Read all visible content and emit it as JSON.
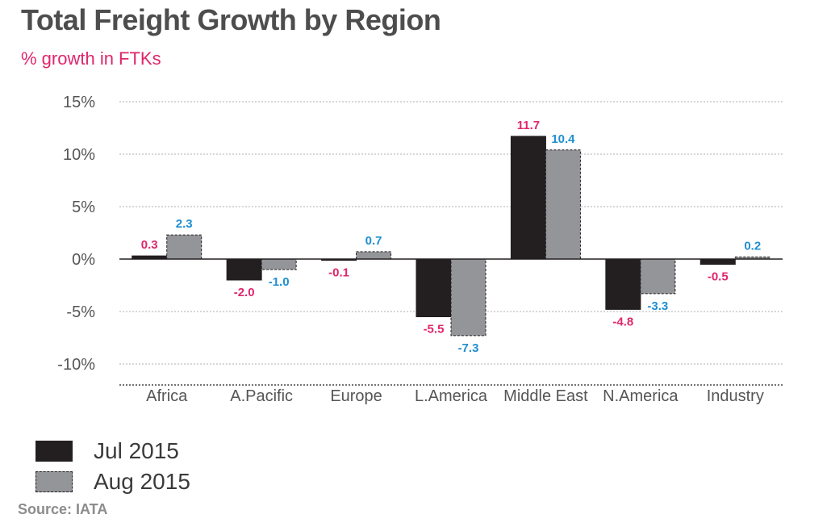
{
  "title": "Total Freight Growth by Region",
  "subtitle": "% growth in FTKs",
  "source": "Source: IATA",
  "colors": {
    "title": "#4d4d4d",
    "subtitle": "#e0266b",
    "series_jul": "#231f20",
    "series_aug": "#939598",
    "label_jul": "#e0266b",
    "label_aug": "#1f8fd0",
    "axis_text": "#555555",
    "grid": "#bfbfbf"
  },
  "chart_data": {
    "type": "bar",
    "categories": [
      "Africa",
      "A.Pacific",
      "Europe",
      "L.America",
      "Middle East",
      "N.America",
      "Industry"
    ],
    "series": [
      {
        "name": "Jul 2015",
        "values": [
          0.3,
          -2.0,
          -0.1,
          -5.5,
          11.7,
          -4.8,
          -0.5
        ]
      },
      {
        "name": "Aug 2015",
        "values": [
          2.3,
          -1.0,
          0.7,
          -7.3,
          10.4,
          -3.3,
          0.2
        ]
      }
    ],
    "data_labels": [
      [
        "0.3",
        "-2.0",
        "-0.1",
        "-5.5",
        "11.7",
        "-4.8",
        "-0.5"
      ],
      [
        "2.3",
        "-1.0",
        "0.7",
        "-7.3",
        "10.4",
        "-3.3",
        "0.2"
      ]
    ],
    "yticks": [
      15,
      10,
      5,
      0,
      -5,
      -10
    ],
    "ytick_labels": [
      "15%",
      "10%",
      "5%",
      "0%",
      "-5%",
      "-10%"
    ],
    "ylim": [
      -12,
      15
    ],
    "grid": true,
    "legend_position": "bottom-left"
  }
}
